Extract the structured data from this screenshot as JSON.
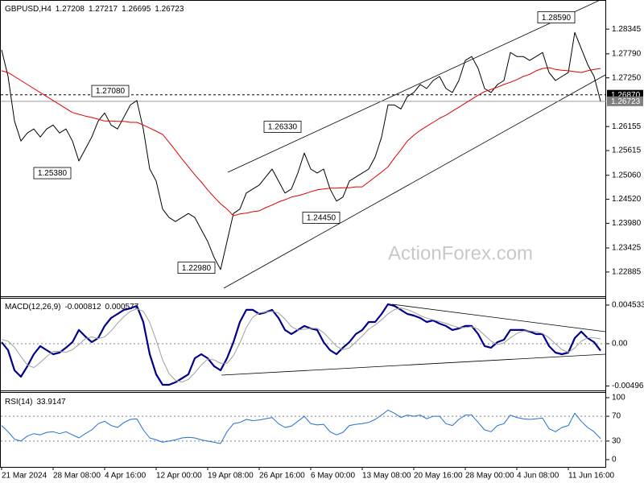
{
  "chart_data": [
    {
      "type": "line",
      "title": "GBPUSD,H4",
      "ohlc": [
        1.27208,
        1.27217,
        1.26695,
        1.26723
      ],
      "watermark": "ActionForex.com",
      "categories": [
        "21 Mar 2024",
        null,
        null,
        null,
        null,
        null,
        null,
        null,
        "28 Mar 08:00",
        null,
        null,
        null,
        null,
        null,
        null,
        null,
        "4 Apr 16:00",
        null,
        null,
        null,
        null,
        null,
        null,
        null,
        "12 Apr 00:00",
        null,
        null,
        null,
        null,
        null,
        null,
        null,
        "19 Apr 08:00",
        null,
        null,
        null,
        null,
        null,
        null,
        null,
        "26 Apr 16:00",
        null,
        null,
        null,
        null,
        null,
        null,
        null,
        "6 May 00:00",
        null,
        null,
        null,
        null,
        null,
        null,
        null,
        "13 May 08:00",
        null,
        null,
        null,
        null,
        null,
        null,
        null,
        "20 May 16:00",
        null,
        null,
        null,
        null,
        null,
        null,
        null,
        "28 May 00:00",
        null,
        null,
        null,
        null,
        null,
        null,
        null,
        "4 Jun 08:00",
        null,
        null,
        null,
        null,
        null,
        null,
        null,
        "11 Jun 16:00",
        null,
        null,
        null,
        null,
        null
      ],
      "series": [
        {
          "color": "#000000",
          "values": [
            1.2788,
            1.2728,
            1.2628,
            1.2583,
            1.2601,
            1.261,
            1.2592,
            1.261,
            1.2619,
            1.2601,
            1.261,
            1.2583,
            1.2538,
            1.2565,
            1.2592,
            1.2628,
            1.2646,
            1.2619,
            1.261,
            1.2637,
            1.2664,
            1.2674,
            1.261,
            1.252,
            1.2493,
            1.243,
            1.2411,
            1.2402,
            1.2411,
            1.242,
            1.2411,
            1.2384,
            1.2357,
            1.2321,
            1.2294,
            1.2357,
            1.242,
            1.243,
            1.2466,
            1.2475,
            1.2484,
            1.2502,
            1.252,
            1.2493,
            1.2466,
            1.2475,
            1.2511,
            1.2556,
            1.252,
            1.2511,
            1.252,
            1.2475,
            1.2448,
            1.2457,
            1.2493,
            1.2502,
            1.2511,
            1.252,
            1.2547,
            1.2592,
            1.2664,
            1.2664,
            1.2655,
            1.2683,
            1.2692,
            1.271,
            1.2701,
            1.2719,
            1.2728,
            1.2701,
            1.2692,
            1.2719,
            1.2764,
            1.2773,
            1.2746,
            1.2701,
            1.2692,
            1.271,
            1.2719,
            1.2782,
            1.2773,
            1.2773,
            1.2764,
            1.2773,
            1.2782,
            1.2737,
            1.2719,
            1.2728,
            1.2737,
            1.2827,
            1.2791,
            1.2755,
            1.2728,
            1.26723
          ]
        },
        {
          "color": "#e00000",
          "values": [
            1.2741,
            1.2737,
            1.2728,
            1.2719,
            1.271,
            1.2701,
            1.2692,
            1.2683,
            1.2674,
            1.2665,
            1.2656,
            1.2647,
            1.2643,
            1.2639,
            1.2636,
            1.2632,
            1.2628,
            1.2628,
            1.2627,
            1.2627,
            1.2625,
            1.2625,
            1.2619,
            1.2612,
            1.2605,
            1.2598,
            1.258,
            1.2562,
            1.2543,
            1.2525,
            1.2507,
            1.2491,
            1.2473,
            1.2457,
            1.2442,
            1.243,
            1.2415,
            1.2419,
            1.2421,
            1.2424,
            1.2426,
            1.2433,
            1.2439,
            1.2446,
            1.2451,
            1.2457,
            1.246,
            1.2464,
            1.2469,
            1.2473,
            1.2475,
            1.2477,
            1.2477,
            1.2478,
            1.2478,
            1.248,
            1.248,
            1.2491,
            1.2502,
            1.2513,
            1.2525,
            1.2545,
            1.2563,
            1.2583,
            1.2596,
            1.2607,
            1.2616,
            1.2625,
            1.2634,
            1.2641,
            1.265,
            1.2659,
            1.2668,
            1.2677,
            1.2686,
            1.2694,
            1.2699,
            1.2704,
            1.271,
            1.2715,
            1.2721,
            1.2728,
            1.2733,
            1.2741,
            1.2746,
            1.2748,
            1.2744,
            1.2742,
            1.2741,
            1.2739,
            1.2737,
            1.2741,
            1.2744,
            1.2746
          ]
        }
      ],
      "ylim": [
        1.2234,
        1.29
      ],
      "yticks": [
        1.28345,
        {
          "value": 1.2779,
          "label": "1.27790"
        },
        {
          "value": 1.2725,
          "label": "1.27250"
        },
        1.26155,
        1.25615,
        {
          "value": 1.2506,
          "label": "1.25060"
        },
        {
          "value": 1.2452,
          "label": "1.24520"
        },
        {
          "value": 1.2398,
          "label": "1.23980"
        },
        1.23425,
        1.22885
      ],
      "price_lines": [
        {
          "value": 1.2687,
          "label": "1.26870"
        },
        1.26723
      ],
      "annotations": [
        {
          "value": 1.2859,
          "label": "1.28590"
        },
        {
          "value": 1.2708,
          "label": "1.27080"
        },
        {
          "value": 1.2538,
          "label": "1.25380"
        },
        {
          "value": 1.2633,
          "label": "1.26330"
        },
        {
          "value": 1.2445,
          "label": "1.24450"
        },
        {
          "value": 1.2298,
          "label": "1.22980"
        }
      ]
    },
    {
      "type": "line",
      "title": "MACD(12,26,9)",
      "readout": [
        -0.000812,
        0.000577
      ],
      "series": [
        {
          "color": "#00008b",
          "values": [
            0.00019,
            -0.00076,
            -0.00312,
            -0.00387,
            -0.00264,
            -0.00123,
            -0.00028,
            -0.00076,
            -0.00123,
            -0.00104,
            -0.00047,
            0.00019,
            0.00161,
            0.00085,
            0.00019,
            0.00066,
            0.00208,
            0.00302,
            0.00349,
            0.00397,
            0.00415,
            0.00444,
            0.00255,
            -0.00123,
            -0.00359,
            -0.00482,
            -0.00482,
            -0.00453,
            -0.00406,
            -0.00359,
            -0.0017,
            -0.00123,
            -0.0017,
            -0.00264,
            -0.00312,
            -0.0017,
            0.00019,
            0.00255,
            0.00397,
            0.00397,
            0.00349,
            0.00368,
            0.00397,
            0.00302,
            0.00161,
            0.00113,
            0.00161,
            0.00208,
            0.00179,
            0.00161,
            0.00019,
            -0.00076,
            -0.00123,
            -0.00047,
            0.00019,
            0.00113,
            0.00161,
            0.00255,
            0.00255,
            0.00349,
            0.00463,
            0.00444,
            0.00397,
            0.00349,
            0.0033,
            0.00302,
            0.00255,
            0.00274,
            0.00236,
            0.00208,
            0.00161,
            0.00179,
            0.00208,
            0.00208,
            0.00113,
            -0.00028,
            -0.00047,
            0.00019,
            0.00047,
            0.00161,
            0.00161,
            0.00161,
            0.00142,
            0.00113,
            0.00113,
            -0.00028,
            -0.00104,
            -0.00123,
            -0.00104,
            0.00066,
            0.00142,
            0.00066,
            0.00019,
            -0.000812
          ]
        },
        {
          "color": "#a0a0a0",
          "values": [
            0.0005,
            0.0003,
            -0.0004,
            -0.0015,
            -0.0025,
            -0.0028,
            -0.0022,
            -0.0015,
            -0.0009,
            -0.0009,
            -0.001,
            -0.0007,
            -0.0001,
            0.0006,
            0.0008,
            0.0006,
            0.0008,
            0.0015,
            0.0024,
            0.0032,
            0.0038,
            0.0041,
            0.0038,
            0.0025,
            0.0004,
            -0.0019,
            -0.0035,
            -0.0043,
            -0.0045,
            -0.0042,
            -0.0034,
            -0.0025,
            -0.0018,
            -0.0019,
            -0.0023,
            -0.0023,
            -0.0014,
            0.0001,
            0.0019,
            0.0031,
            0.0036,
            0.0037,
            0.0038,
            0.0036,
            0.0029,
            0.002,
            0.0016,
            0.0017,
            0.0018,
            0.0018,
            0.0013,
            0.0005,
            -0.0003,
            -0.0007,
            -0.0005,
            0.0002,
            0.0009,
            0.0017,
            0.0022,
            0.0028,
            0.0035,
            0.004,
            0.0042,
            0.004,
            0.0037,
            0.0033,
            0.003,
            0.0028,
            0.0026,
            0.0024,
            0.0021,
            0.0019,
            0.0019,
            0.002,
            0.0017,
            0.001,
            0.0003,
            -0.0001,
            0.0001,
            0.0007,
            0.0012,
            0.0015,
            0.0015,
            0.0014,
            0.0012,
            0.0007,
            0.0,
            -0.0007,
            -0.001,
            -0.0005,
            0.0003,
            0.0007,
            0.0007,
            0.000577
          ]
        }
      ],
      "ylim": [
        -0.00548,
        0.00538
      ],
      "yticks": [
        0.004533,
        {
          "value": 0,
          "label": "0.00"
        },
        -0.00496
      ],
      "levels": [
        0
      ]
    },
    {
      "type": "line",
      "title": "RSI(14)",
      "readout": [
        33.9147
      ],
      "series": [
        {
          "color": "#1e6fd9",
          "values": [
            55,
            45,
            33,
            30,
            38,
            42,
            40,
            44,
            45,
            42,
            45,
            40,
            35,
            42,
            48,
            58,
            62,
            55,
            52,
            60,
            65,
            66,
            48,
            35,
            32,
            28,
            30,
            32,
            35,
            36,
            35,
            32,
            30,
            28,
            26,
            45,
            58,
            60,
            65,
            63,
            64,
            66,
            68,
            58,
            52,
            54,
            62,
            70,
            58,
            56,
            57,
            45,
            40,
            44,
            55,
            57,
            58,
            60,
            65,
            72,
            80,
            75,
            68,
            72,
            70,
            72,
            66,
            70,
            70,
            58,
            55,
            65,
            72,
            72,
            60,
            48,
            45,
            55,
            58,
            72,
            68,
            66,
            65,
            66,
            67,
            50,
            45,
            52,
            55,
            75,
            62,
            52,
            45,
            33.9147
          ]
        }
      ],
      "ylim": [
        -11.7,
        107.8
      ],
      "yticks": [
        100,
        70,
        30,
        0
      ],
      "levels": [
        70,
        30
      ]
    }
  ]
}
